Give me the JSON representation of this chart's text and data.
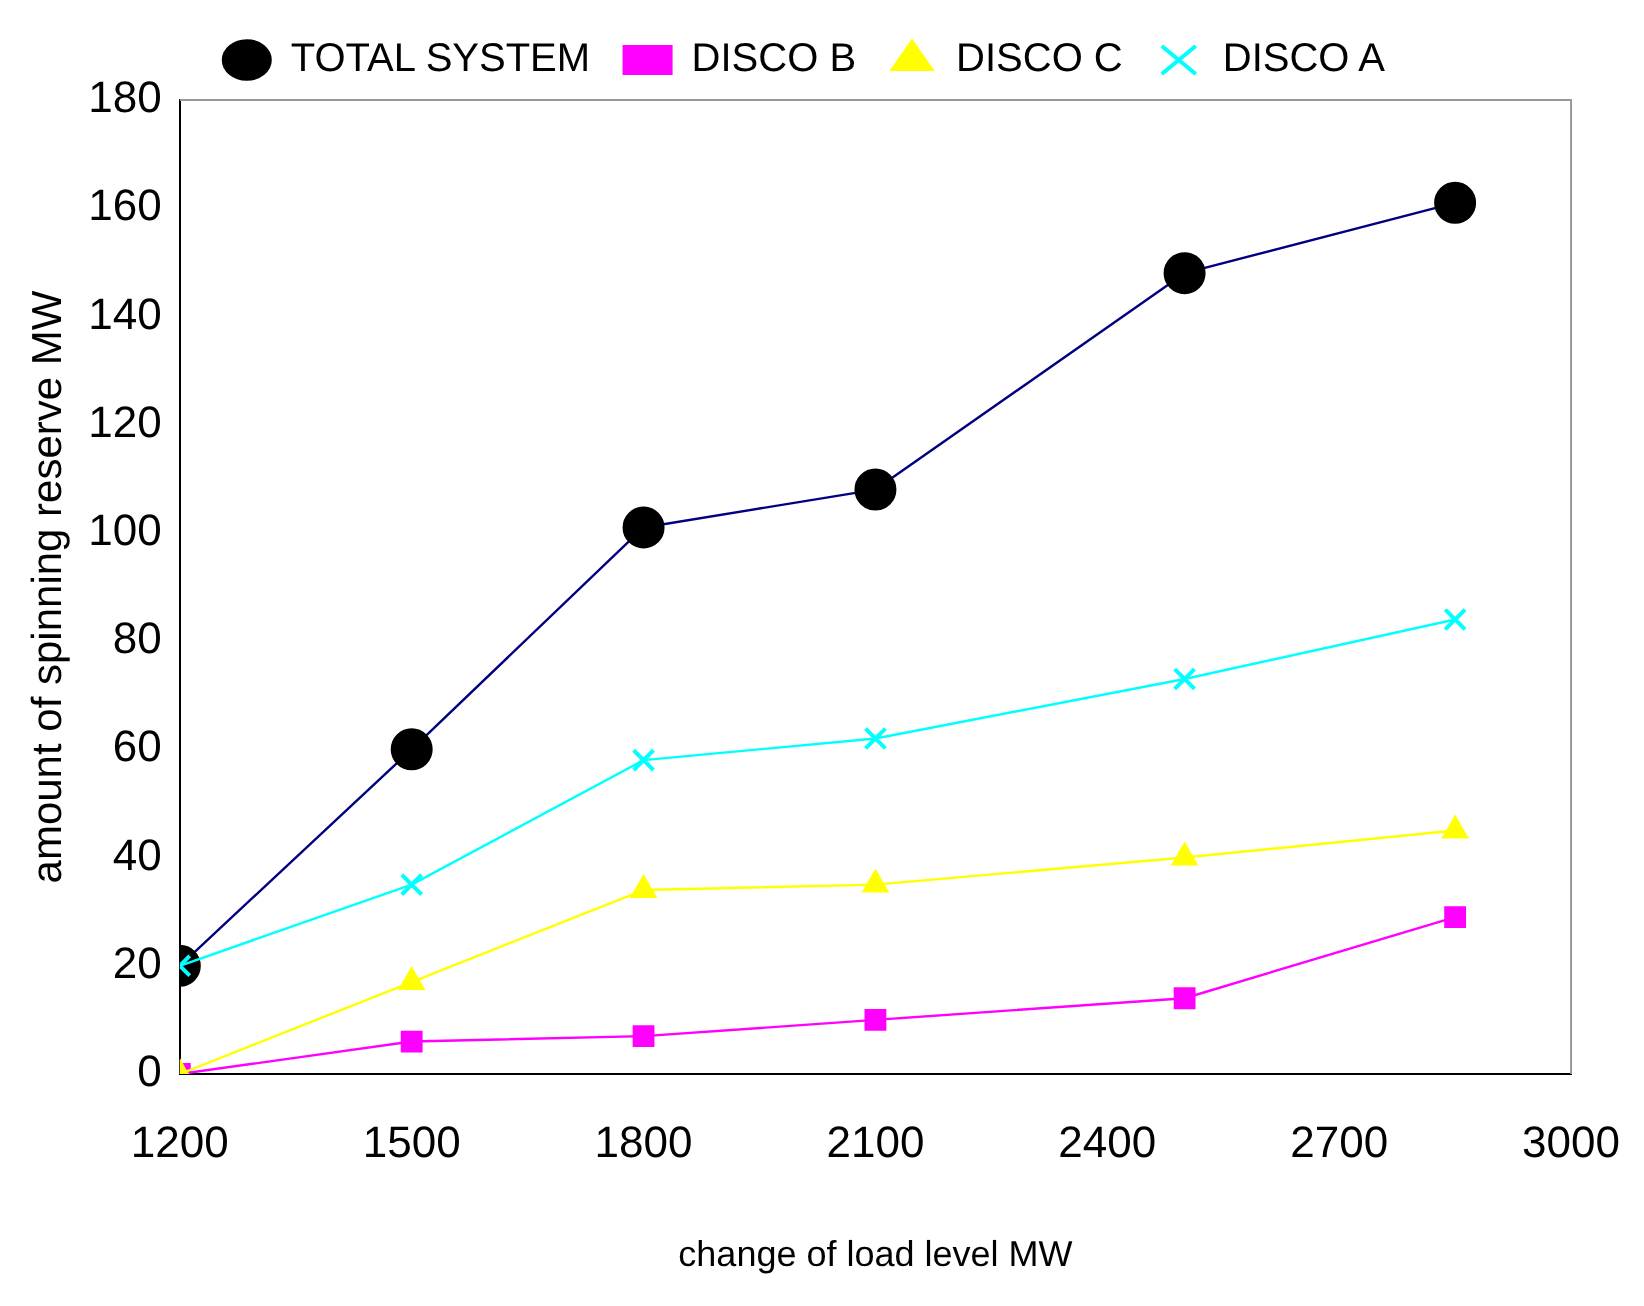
{
  "chart_data": {
    "type": "line",
    "xlabel": "change of load level MW",
    "ylabel": "amount of spinning reserve MW",
    "x": [
      1200,
      1500,
      1800,
      2100,
      2500,
      2850
    ],
    "series": [
      {
        "name": "TOTAL SYSTEM",
        "color": "#000080",
        "marker": "circle",
        "values": [
          20,
          60,
          101,
          108,
          148,
          161
        ]
      },
      {
        "name": "DISCO B",
        "color": "#ff00ff",
        "marker": "square",
        "values": [
          0,
          6,
          7,
          10,
          14,
          29
        ]
      },
      {
        "name": "DISCO C",
        "color": "#ffff00",
        "marker": "triangle",
        "values": [
          0,
          17,
          34,
          35,
          40,
          45
        ]
      },
      {
        "name": "DISCO A",
        "color": "#00ffff",
        "marker": "cross",
        "values": [
          20,
          35,
          58,
          62,
          73,
          84
        ]
      }
    ],
    "xlim": [
      1200,
      3000
    ],
    "xticks": [
      1200,
      1500,
      1800,
      2100,
      2400,
      2700,
      3000
    ],
    "ylim": [
      0,
      180
    ],
    "yticks": [
      0,
      20,
      40,
      60,
      80,
      100,
      120,
      140,
      160,
      180
    ],
    "grid": false,
    "legend": "top",
    "line_style": "solid"
  }
}
